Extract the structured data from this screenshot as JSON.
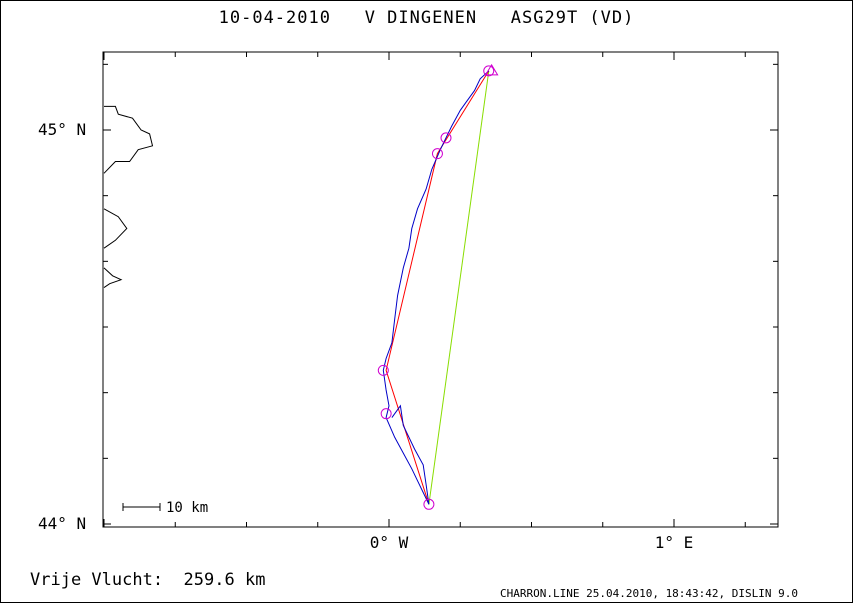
{
  "header": {
    "date": "10-04-2010",
    "pilot": "V DINGENEN",
    "glider": "ASG29T (VD)"
  },
  "footer": {
    "distance_label": "Vrije Vlucht:",
    "distance_value": "259.6 km",
    "software": "CHARRON.LINE 25.04.2010, 18:43:42, DISLIN 9.0"
  },
  "scale_bar_label": "10 km",
  "colors": {
    "track": "#0000c8",
    "task": "#ff0000",
    "closing_leg": "#88dd00",
    "turnpoints": "#d000d0",
    "coastline": "#000000"
  },
  "chart_data": {
    "type": "map-trace",
    "xlim": [
      -1.0,
      1.35
    ],
    "ylim": [
      44.0,
      45.2
    ],
    "x_ticks": [
      {
        "value": 0,
        "label": "0° W"
      },
      {
        "value": 1,
        "label": "1° E"
      }
    ],
    "y_ticks": [
      {
        "value": 44.0,
        "label": "44° N"
      },
      {
        "value": 45.0,
        "label": "45° N"
      }
    ],
    "turnpoints": [
      {
        "lon": 0.35,
        "lat": 45.15
      },
      {
        "lon": 0.2,
        "lat": 44.98
      },
      {
        "lon": 0.17,
        "lat": 44.94
      },
      {
        "lon": -0.02,
        "lat": 44.39
      },
      {
        "lon": -0.01,
        "lat": 44.28
      },
      {
        "lon": 0.14,
        "lat": 44.05
      }
    ],
    "task_line": [
      {
        "lon": 0.35,
        "lat": 45.15
      },
      {
        "lon": 0.17,
        "lat": 44.94
      },
      {
        "lon": -0.01,
        "lat": 44.39
      },
      {
        "lon": 0.14,
        "lat": 44.05
      }
    ],
    "closing_leg": [
      {
        "lon": 0.14,
        "lat": 44.05
      },
      {
        "lon": 0.35,
        "lat": 45.15
      }
    ],
    "end_marker": {
      "lon": 0.36,
      "lat": 45.15
    },
    "track": [
      {
        "lon": 0.35,
        "lat": 45.15
      },
      {
        "lon": 0.32,
        "lat": 45.13
      },
      {
        "lon": 0.3,
        "lat": 45.1
      },
      {
        "lon": 0.27,
        "lat": 45.07
      },
      {
        "lon": 0.25,
        "lat": 45.05
      },
      {
        "lon": 0.22,
        "lat": 45.01
      },
      {
        "lon": 0.2,
        "lat": 44.98
      },
      {
        "lon": 0.18,
        "lat": 44.95
      },
      {
        "lon": 0.15,
        "lat": 44.9
      },
      {
        "lon": 0.13,
        "lat": 44.85
      },
      {
        "lon": 0.1,
        "lat": 44.8
      },
      {
        "lon": 0.08,
        "lat": 44.75
      },
      {
        "lon": 0.07,
        "lat": 44.7
      },
      {
        "lon": 0.05,
        "lat": 44.65
      },
      {
        "lon": 0.03,
        "lat": 44.58
      },
      {
        "lon": 0.02,
        "lat": 44.52
      },
      {
        "lon": 0.01,
        "lat": 44.46
      },
      {
        "lon": -0.01,
        "lat": 44.42
      },
      {
        "lon": -0.02,
        "lat": 44.39
      },
      {
        "lon": -0.01,
        "lat": 44.34
      },
      {
        "lon": 0.0,
        "lat": 44.3
      },
      {
        "lon": -0.01,
        "lat": 44.27
      },
      {
        "lon": 0.02,
        "lat": 44.22
      },
      {
        "lon": 0.05,
        "lat": 44.18
      },
      {
        "lon": 0.08,
        "lat": 44.14
      },
      {
        "lon": 0.1,
        "lat": 44.11
      },
      {
        "lon": 0.12,
        "lat": 44.08
      },
      {
        "lon": 0.14,
        "lat": 44.05
      },
      {
        "lon": 0.13,
        "lat": 44.1
      },
      {
        "lon": 0.12,
        "lat": 44.15
      },
      {
        "lon": 0.09,
        "lat": 44.19
      },
      {
        "lon": 0.05,
        "lat": 44.25
      },
      {
        "lon": 0.04,
        "lat": 44.3
      },
      {
        "lon": 0.01,
        "lat": 44.27
      }
    ],
    "coastline": [
      [
        {
          "lon": -1.0,
          "lat": 45.06
        },
        {
          "lon": -0.96,
          "lat": 45.06
        },
        {
          "lon": -0.95,
          "lat": 45.04
        },
        {
          "lon": -0.9,
          "lat": 45.03
        },
        {
          "lon": -0.87,
          "lat": 45.0
        },
        {
          "lon": -0.84,
          "lat": 44.99
        },
        {
          "lon": -0.83,
          "lat": 44.96
        },
        {
          "lon": -0.88,
          "lat": 44.95
        },
        {
          "lon": -0.91,
          "lat": 44.92
        },
        {
          "lon": -0.96,
          "lat": 44.92
        },
        {
          "lon": -1.0,
          "lat": 44.89
        }
      ],
      [
        {
          "lon": -1.0,
          "lat": 44.8
        },
        {
          "lon": -0.95,
          "lat": 44.78
        },
        {
          "lon": -0.92,
          "lat": 44.75
        },
        {
          "lon": -0.96,
          "lat": 44.72
        },
        {
          "lon": -1.0,
          "lat": 44.7
        }
      ],
      [
        {
          "lon": -1.0,
          "lat": 44.65
        },
        {
          "lon": -0.97,
          "lat": 44.63
        },
        {
          "lon": -0.94,
          "lat": 44.62
        },
        {
          "lon": -0.98,
          "lat": 44.61
        },
        {
          "lon": -1.0,
          "lat": 44.6
        }
      ]
    ]
  }
}
